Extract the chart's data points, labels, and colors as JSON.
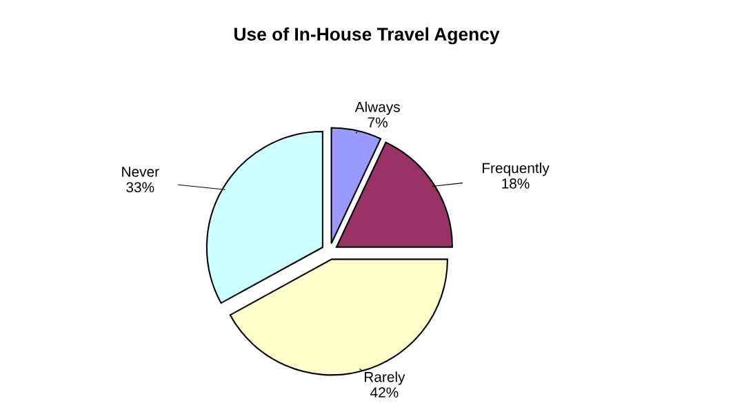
{
  "chart_data": {
    "type": "pie",
    "title": "Use of In-House Travel Agency",
    "categories": [
      "Always",
      "Frequently",
      "Rarely",
      "Never"
    ],
    "values": [
      7,
      18,
      42,
      33
    ],
    "value_labels": [
      "7%",
      "18%",
      "42%",
      "33%"
    ],
    "colors": [
      "#9999ff",
      "#993366",
      "#ffffcc",
      "#ccffff"
    ],
    "legend": false
  }
}
